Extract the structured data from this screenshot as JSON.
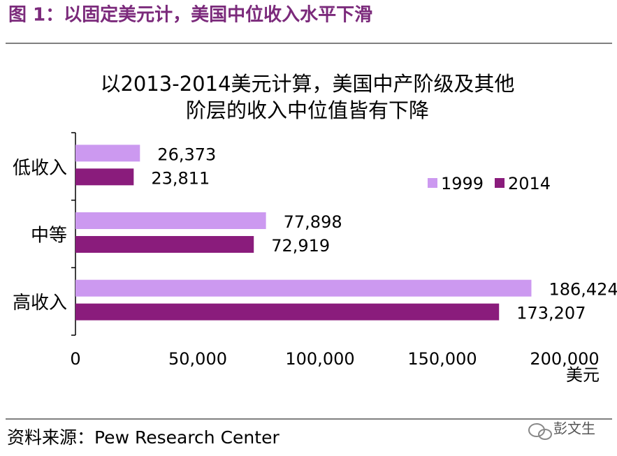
{
  "header": {
    "title": "图 1：以固定美元计，美国中位收入水平下滑"
  },
  "chart_data": {
    "type": "hbar",
    "title": [
      "以2013-2014美元计算，美国中产阶级及其他",
      "阶层的收入中位值皆有下降"
    ],
    "categories": [
      "低收入",
      "中等",
      "高收入"
    ],
    "series": [
      {
        "name": "1999",
        "color": "#cc99f0",
        "values": [
          26373,
          77898,
          186424
        ],
        "value_labels": [
          "26,373",
          "77,898",
          "186,424"
        ]
      },
      {
        "name": "2014",
        "color": "#8a1c7c",
        "values": [
          23811,
          72919,
          173207
        ],
        "value_labels": [
          "23,811",
          "72,919",
          "173,207"
        ]
      }
    ],
    "xlim": [
      0,
      200000
    ],
    "xticks": [
      0,
      {
        "value": 50000,
        "label": "50,000"
      },
      {
        "value": 100000,
        "label": "100,000"
      },
      {
        "value": 150000,
        "label": "150,000"
      },
      {
        "value": 200000,
        "label": "200,000"
      }
    ],
    "x_unit": "美元",
    "grid": false,
    "legend": "right"
  },
  "footer": {
    "source": "资料来源：Pew Research Center",
    "watermark": "彭文生"
  }
}
